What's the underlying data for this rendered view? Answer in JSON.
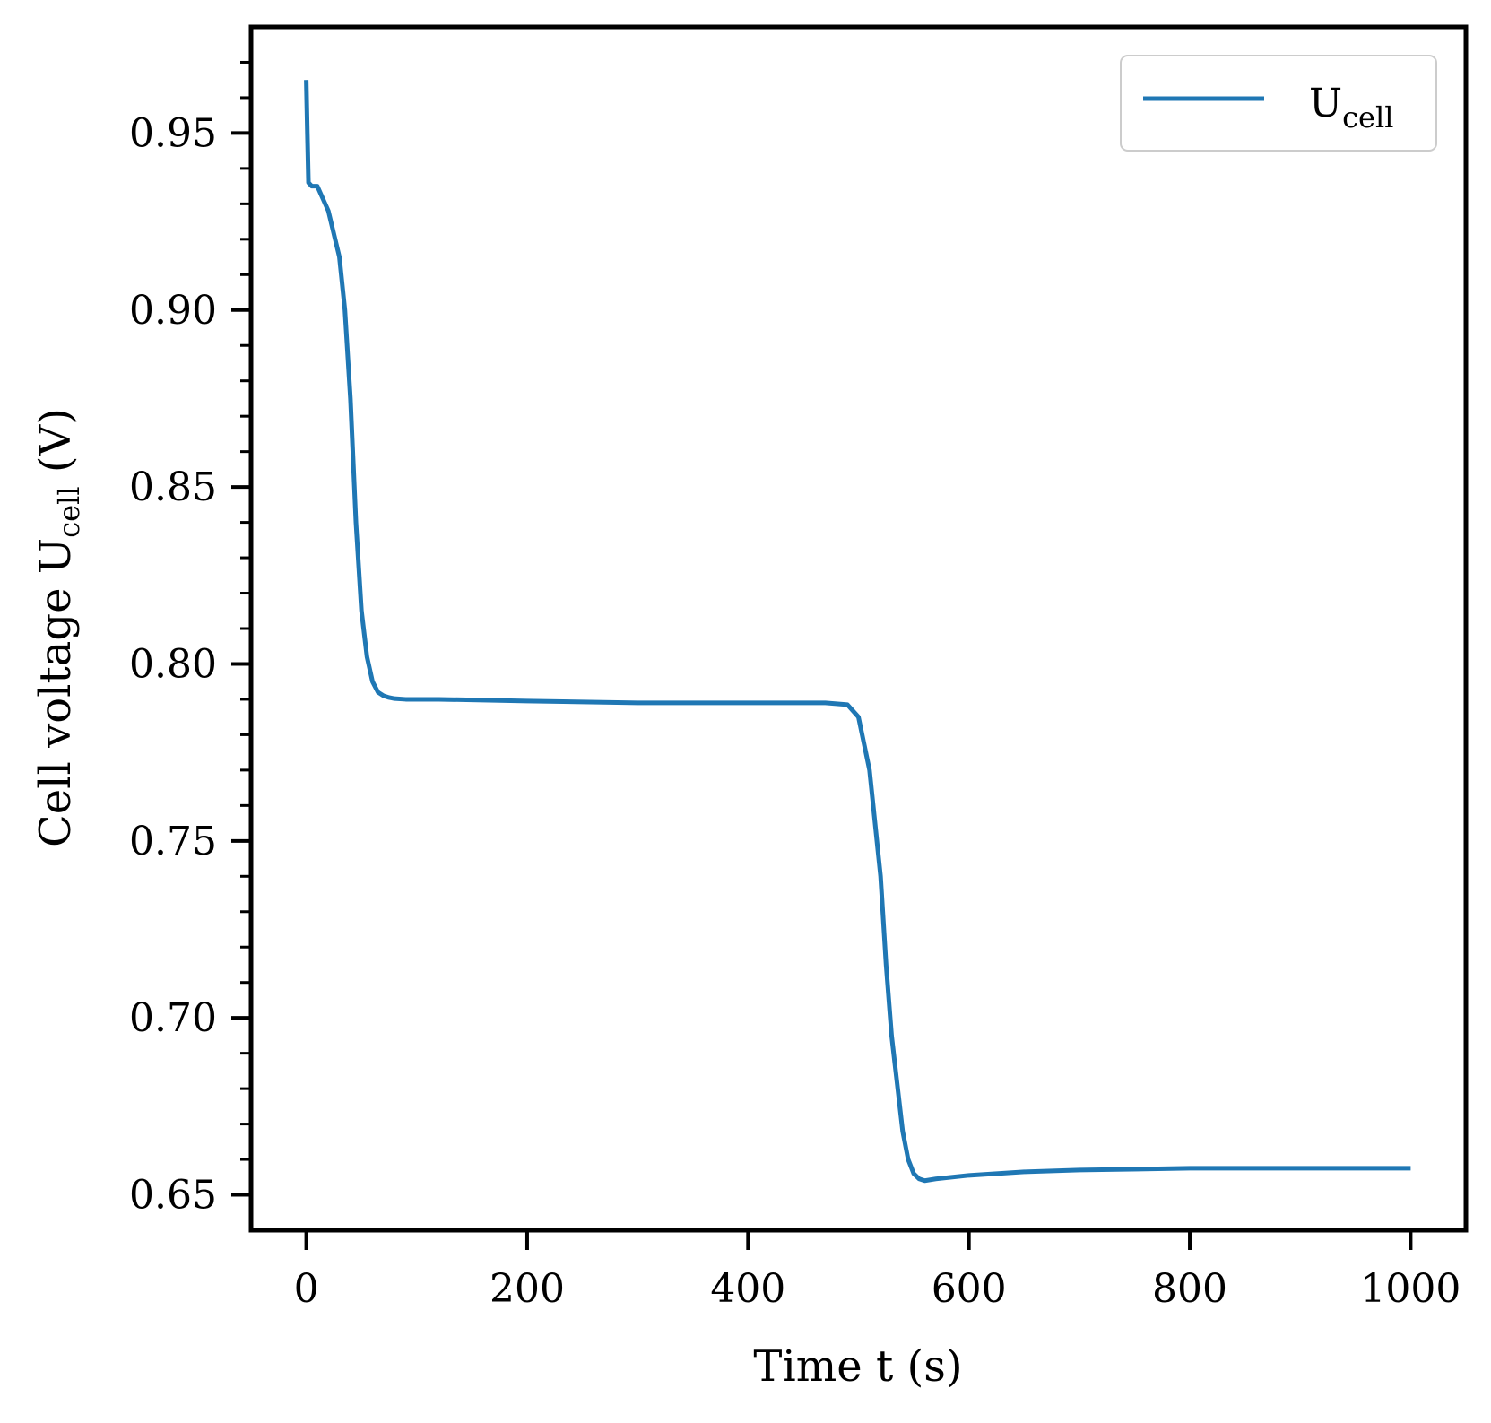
{
  "chart_data": {
    "type": "line",
    "title": "",
    "xlabel": "Time t (s)",
    "ylabel_main": "Cell voltage U",
    "ylabel_sub": "cell",
    "ylabel_unit": " (V)",
    "xlim": [
      -50,
      1050
    ],
    "ylim": [
      0.64,
      0.98
    ],
    "grid": false,
    "legend_placement": "top-right",
    "xticks": [
      0,
      200,
      400,
      600,
      800,
      1000
    ],
    "xtick_labels": [
      "0",
      "200",
      "400",
      "600",
      "800",
      "1000"
    ],
    "yticks": [
      0.65,
      0.7,
      0.75,
      0.8,
      0.85,
      0.9,
      0.95
    ],
    "ytick_labels": [
      "0.65",
      "0.70",
      "0.75",
      "0.80",
      "0.85",
      "0.90",
      "0.95"
    ],
    "series": [
      {
        "name_main": "U",
        "name_sub": "cell",
        "color": "#1f77b4",
        "x": [
          0,
          1,
          2,
          5,
          10,
          20,
          30,
          35,
          40,
          45,
          50,
          55,
          60,
          65,
          70,
          75,
          80,
          90,
          120,
          200,
          300,
          400,
          470,
          490,
          500,
          510,
          520,
          525,
          530,
          540,
          545,
          550,
          555,
          560,
          570,
          600,
          650,
          700,
          800,
          900,
          1000
        ],
        "y": [
          0.965,
          0.95,
          0.936,
          0.935,
          0.935,
          0.928,
          0.915,
          0.9,
          0.875,
          0.84,
          0.815,
          0.802,
          0.795,
          0.792,
          0.791,
          0.7905,
          0.7902,
          0.79,
          0.79,
          0.7895,
          0.789,
          0.789,
          0.789,
          0.7885,
          0.785,
          0.77,
          0.74,
          0.715,
          0.695,
          0.668,
          0.66,
          0.656,
          0.6545,
          0.654,
          0.6545,
          0.6555,
          0.6565,
          0.657,
          0.6575,
          0.6575,
          0.6575
        ]
      }
    ]
  }
}
